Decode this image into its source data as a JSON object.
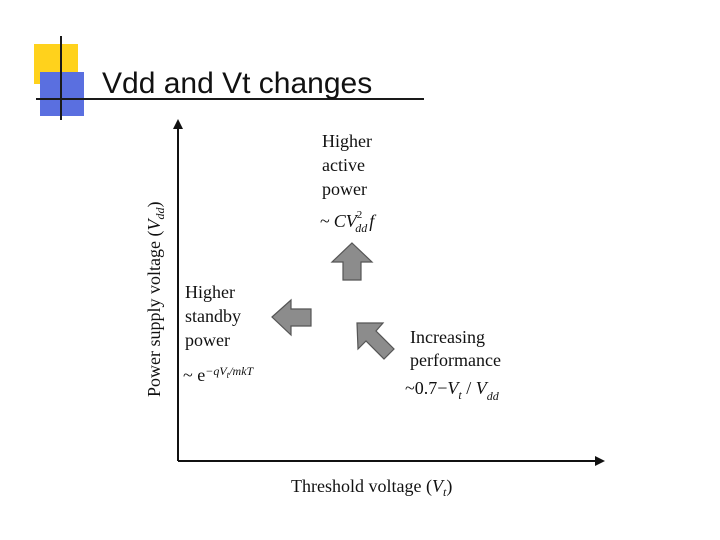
{
  "slide": {
    "title": "Vdd and Vt changes"
  },
  "diagram": {
    "y_axis_label": {
      "main": "Power supply voltage (",
      "var": "V",
      "sub": "dd",
      "close": ")"
    },
    "x_axis_label": {
      "main": "Threshold voltage (",
      "var": "V",
      "sub": "t",
      "close": ")"
    },
    "active_power": {
      "lines": [
        "Higher",
        "active",
        "power"
      ],
      "formula": {
        "tilde": "~",
        "cv": "CV",
        "exp": "2",
        "sub": "dd",
        "tail": "f"
      }
    },
    "standby_power": {
      "lines": [
        "Higher",
        "standby",
        "power"
      ],
      "formula": {
        "base": "~ e",
        "exponent": "−qV",
        "exp_sub": "t",
        "exp_tail": "/mkT"
      }
    },
    "performance": {
      "lines": [
        "Increasing",
        "performance"
      ],
      "formula": {
        "head": "~0.7−",
        "v1": "V",
        "sub1": "t",
        "mid": " / ",
        "v2": "V",
        "sub2": "dd"
      }
    },
    "colors": {
      "arrow_fill": "#8c8c8c",
      "arrow_stroke": "#555555",
      "axis": "#111111",
      "logo_yellow": "#ffd21c",
      "logo_blue": "#5a6fe0"
    }
  }
}
